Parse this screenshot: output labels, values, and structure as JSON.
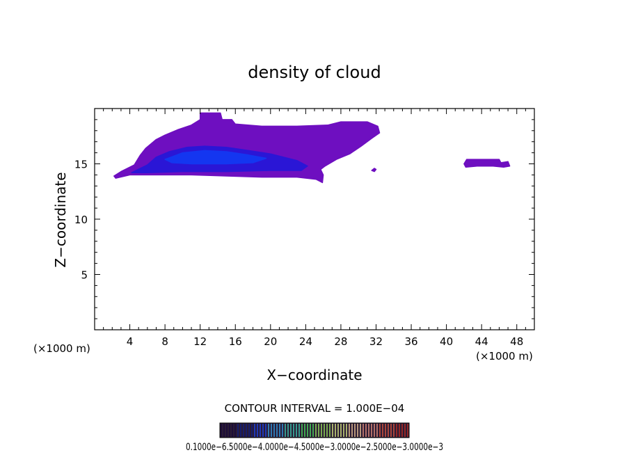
{
  "chart_data": {
    "type": "heatmap",
    "title": "density of cloud",
    "xlabel": "X−coordinate",
    "ylabel": "Z−coordinate",
    "x_unit_left": "(×1000 m)",
    "x_unit_right": "(×1000 m)",
    "xlim": [
      0,
      50
    ],
    "ylim": [
      0,
      20
    ],
    "x_ticks": [
      "4",
      "8",
      "12",
      "16",
      "20",
      "24",
      "28",
      "32",
      "36",
      "40",
      "44",
      "48"
    ],
    "y_ticks": [
      "5",
      "10",
      "15"
    ],
    "contour_interval_text": "CONTOUR INTERVAL = 1.000E−04",
    "colorbar_labels_text": "0.1000e−6.5000e−4.0000e−4.5000e−3.0000e−2.5000e−3.0000e−3",
    "colorbar": {
      "colors": [
        "#1a0a3a",
        "#121e7a",
        "#1c40d8",
        "#2f8fd0",
        "#3ab7a3",
        "#49c95a",
        "#8ccd57",
        "#c8d77a",
        "#d9b58c",
        "#d58676",
        "#c9503c",
        "#ae2a22"
      ]
    },
    "regions": [
      {
        "name": "main-cloud",
        "color": "#6e0fc0",
        "outline": [
          [
            2.2,
            13.9
          ],
          [
            3,
            14.3
          ],
          [
            4.5,
            14.9
          ],
          [
            5.2,
            15.8
          ],
          [
            5.8,
            16.4
          ],
          [
            7,
            17.2
          ],
          [
            8,
            17.6
          ],
          [
            9.5,
            18.1
          ],
          [
            11,
            18.5
          ],
          [
            12,
            19.0
          ],
          [
            12,
            19.6
          ],
          [
            14.3,
            19.6
          ],
          [
            14.5,
            19.0
          ],
          [
            15.6,
            19.0
          ],
          [
            16,
            18.6
          ],
          [
            19,
            18.4
          ],
          [
            23,
            18.4
          ],
          [
            26.5,
            18.5
          ],
          [
            28,
            18.8
          ],
          [
            31,
            18.8
          ],
          [
            32.2,
            18.4
          ],
          [
            32.4,
            17.8
          ],
          [
            31.5,
            17.3
          ],
          [
            30.3,
            16.6
          ],
          [
            29,
            15.9
          ],
          [
            27.5,
            15.4
          ],
          [
            26.2,
            14.8
          ],
          [
            25.7,
            14.5
          ],
          [
            26.0,
            14.0
          ],
          [
            25.9,
            13.3
          ],
          [
            25.2,
            13.6
          ],
          [
            23,
            13.8
          ],
          [
            19,
            13.8
          ],
          [
            15,
            13.9
          ],
          [
            11,
            14.0
          ],
          [
            7,
            14.0
          ],
          [
            4,
            14.0
          ],
          [
            2.4,
            13.7
          ]
        ]
      },
      {
        "name": "inner-cloud",
        "color": "#2a16d6",
        "outline": [
          [
            4.2,
            14.2
          ],
          [
            6,
            14.9
          ],
          [
            7,
            15.6
          ],
          [
            8.5,
            16.1
          ],
          [
            10.5,
            16.5
          ],
          [
            12.5,
            16.6
          ],
          [
            15,
            16.5
          ],
          [
            17.5,
            16.2
          ],
          [
            20,
            15.9
          ],
          [
            23,
            15.3
          ],
          [
            24.2,
            14.8
          ],
          [
            23.5,
            14.4
          ],
          [
            20,
            14.4
          ],
          [
            15,
            14.3
          ],
          [
            10,
            14.3
          ],
          [
            6,
            14.2
          ]
        ]
      },
      {
        "name": "core-cloud",
        "color": "#1436f0",
        "outline": [
          [
            8,
            15.4
          ],
          [
            10,
            16.0
          ],
          [
            12.5,
            16.2
          ],
          [
            15,
            16.1
          ],
          [
            17.5,
            15.8
          ],
          [
            19.5,
            15.5
          ],
          [
            18,
            15.1
          ],
          [
            15,
            15.0
          ],
          [
            11,
            15.0
          ],
          [
            8.8,
            15.1
          ]
        ]
      },
      {
        "name": "small-cloud-31",
        "color": "#6e0fc0",
        "outline": [
          [
            31.5,
            14.4
          ],
          [
            31.8,
            14.6
          ],
          [
            32.0,
            14.5
          ],
          [
            31.8,
            14.3
          ]
        ]
      },
      {
        "name": "right-cloud",
        "color": "#6e0fc0",
        "outline": [
          [
            42.0,
            15.0
          ],
          [
            42.3,
            15.4
          ],
          [
            46.0,
            15.4
          ],
          [
            46.2,
            15.1
          ],
          [
            47.0,
            15.2
          ],
          [
            47.2,
            14.8
          ],
          [
            46.5,
            14.7
          ],
          [
            45.3,
            14.8
          ],
          [
            43.5,
            14.8
          ],
          [
            42.2,
            14.7
          ]
        ]
      }
    ]
  }
}
